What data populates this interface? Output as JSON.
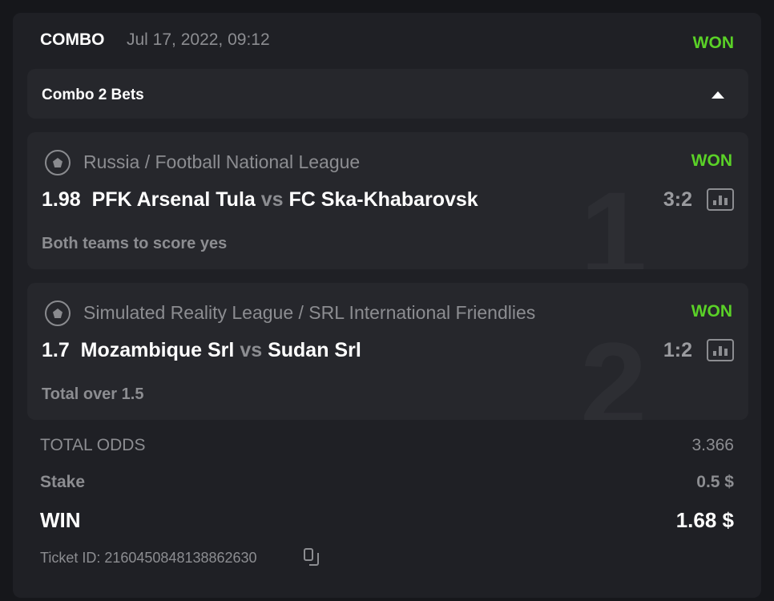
{
  "header": {
    "type": "COMBO",
    "date": "Jul 17, 2022, 09:12",
    "status": "WON"
  },
  "combo": {
    "label": "Combo 2 Bets",
    "toggle_icon": "caret-up-icon"
  },
  "bets": [
    {
      "index": "1",
      "league": "Russia / Football National League",
      "status": "WON",
      "odds": "1.98",
      "home": "PFK Arsenal Tula",
      "vs": "vs",
      "away": "FC Ska-Khabarovsk",
      "score": "3:2",
      "market": "Both teams to score yes"
    },
    {
      "index": "2",
      "league": "Simulated Reality League / SRL International Friendlies",
      "status": "WON",
      "odds": "1.7",
      "home": "Mozambique Srl",
      "vs": "vs",
      "away": "Sudan Srl",
      "score": "1:2",
      "market": "Total over 1.5"
    }
  ],
  "summary": {
    "total_odds_label": "TOTAL ODDS",
    "total_odds": "3.366",
    "stake_label": "Stake",
    "stake": "0.5 $",
    "win_label": "WIN",
    "win": "1.68 $",
    "ticket_label": "Ticket ID: 2160450848138862630"
  },
  "colors": {
    "won": "#5ad127",
    "background": "#1f2025",
    "bet_card": "#26272c"
  }
}
